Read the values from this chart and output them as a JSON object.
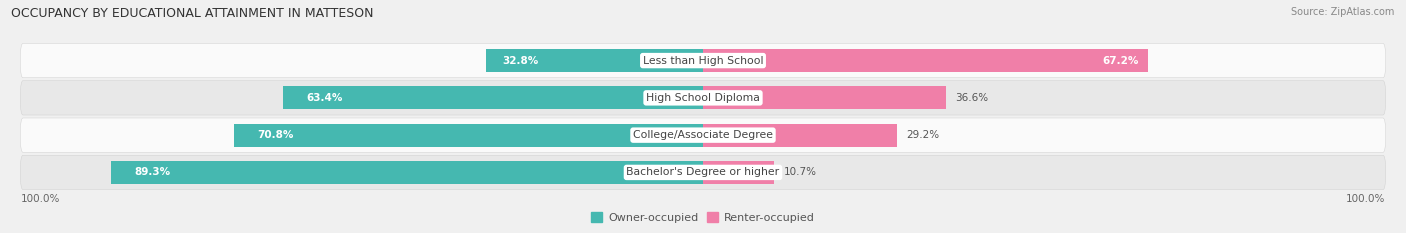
{
  "title": "OCCUPANCY BY EDUCATIONAL ATTAINMENT IN MATTESON",
  "source": "Source: ZipAtlas.com",
  "categories": [
    "Less than High School",
    "High School Diploma",
    "College/Associate Degree",
    "Bachelor's Degree or higher"
  ],
  "owner_pct": [
    32.8,
    63.4,
    70.8,
    89.3
  ],
  "renter_pct": [
    67.2,
    36.6,
    29.2,
    10.7
  ],
  "owner_color": "#45B8B0",
  "renter_color": "#F07FA8",
  "bar_height": 0.62,
  "background_color": "#f0f0f0",
  "row_bg_light": "#fafafa",
  "row_bg_dark": "#e8e8e8",
  "title_fontsize": 9,
  "label_fontsize": 7.8,
  "pct_fontsize": 7.5,
  "tick_fontsize": 7.5,
  "legend_fontsize": 8,
  "source_fontsize": 7
}
